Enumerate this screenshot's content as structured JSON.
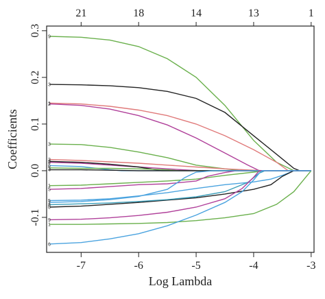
{
  "chart_data": {
    "type": "line",
    "xlabel": "Log Lambda",
    "ylabel": "Coefficients",
    "xlim": [
      -7.6,
      -2.95
    ],
    "ylim": [
      -0.175,
      0.31
    ],
    "x_ticks": [
      -7,
      -6,
      -5,
      -4,
      -3
    ],
    "x_tick_labels": [
      "-7",
      "-6",
      "-5",
      "-4",
      "-3"
    ],
    "y_ticks": [
      -0.1,
      0.0,
      0.1,
      0.2,
      0.3
    ],
    "y_tick_labels": [
      "-0.1",
      "0.0",
      "0.1",
      "0.2",
      "0.3"
    ],
    "top_axis": {
      "positions": [
        -7.0,
        -6.0,
        -5.0,
        -4.0,
        -3.0
      ],
      "labels": [
        "21",
        "18",
        "14",
        "13",
        "1"
      ]
    },
    "grid": false,
    "legend": "none",
    "series": [
      {
        "color": "#6ab04c",
        "label": "9",
        "points": [
          [
            -7.55,
            0.288
          ],
          [
            -7,
            0.286
          ],
          [
            -6.5,
            0.28
          ],
          [
            -6,
            0.266
          ],
          [
            -5.5,
            0.24
          ],
          [
            -5,
            0.2
          ],
          [
            -4.5,
            0.14
          ],
          [
            -4,
            0.065
          ],
          [
            -3.6,
            0.018
          ],
          [
            -3.3,
            0.0
          ],
          [
            -3.0,
            0.0
          ]
        ]
      },
      {
        "color": "#222222",
        "label": "3",
        "points": [
          [
            -7.55,
            0.185
          ],
          [
            -7,
            0.184
          ],
          [
            -6.5,
            0.182
          ],
          [
            -6,
            0.178
          ],
          [
            -5.5,
            0.17
          ],
          [
            -5,
            0.155
          ],
          [
            -4.5,
            0.125
          ],
          [
            -4,
            0.075
          ],
          [
            -3.6,
            0.035
          ],
          [
            -3.3,
            0.005
          ],
          [
            -3.2,
            0.0
          ],
          [
            -3.0,
            0.0
          ]
        ]
      },
      {
        "color": "#e07a7a",
        "label": "1",
        "points": [
          [
            -7.55,
            0.145
          ],
          [
            -7,
            0.143
          ],
          [
            -6.5,
            0.138
          ],
          [
            -6,
            0.13
          ],
          [
            -5.5,
            0.118
          ],
          [
            -5,
            0.1
          ],
          [
            -4.5,
            0.075
          ],
          [
            -4,
            0.045
          ],
          [
            -3.6,
            0.018
          ],
          [
            -3.4,
            0.0
          ],
          [
            -3.0,
            0.0
          ]
        ]
      },
      {
        "color": "#b0409a",
        "label": "2",
        "points": [
          [
            -7.55,
            0.143
          ],
          [
            -7,
            0.14
          ],
          [
            -6.5,
            0.132
          ],
          [
            -6,
            0.118
          ],
          [
            -5.5,
            0.098
          ],
          [
            -5,
            0.07
          ],
          [
            -4.5,
            0.038
          ],
          [
            -4.1,
            0.012
          ],
          [
            -3.9,
            0.0
          ],
          [
            -3.0,
            0.0
          ]
        ]
      },
      {
        "color": "#6ab04c",
        "label": "3",
        "points": [
          [
            -7.55,
            0.057
          ],
          [
            -7,
            0.056
          ],
          [
            -6.5,
            0.05
          ],
          [
            -6,
            0.04
          ],
          [
            -5.5,
            0.028
          ],
          [
            -5,
            0.012
          ],
          [
            -4.5,
            0.004
          ],
          [
            -4.2,
            0.0
          ],
          [
            -3.0,
            0.0
          ]
        ]
      },
      {
        "color": "#e07a7a",
        "label": "3",
        "points": [
          [
            -7.55,
            0.024
          ],
          [
            -7,
            0.022
          ],
          [
            -6.5,
            0.019
          ],
          [
            -6,
            0.016
          ],
          [
            -5.5,
            0.012
          ],
          [
            -5,
            0.008
          ],
          [
            -4.5,
            0.004
          ],
          [
            -4,
            0.001
          ],
          [
            -3.8,
            0.0
          ],
          [
            -3.0,
            0.0
          ]
        ]
      },
      {
        "color": "#b0409a",
        "label": "8",
        "points": [
          [
            -7.55,
            0.018
          ],
          [
            -7,
            0.016
          ],
          [
            -6.5,
            0.012
          ],
          [
            -6,
            0.008
          ],
          [
            -5.5,
            0.004
          ],
          [
            -5.1,
            0.001
          ],
          [
            -4.9,
            0.0
          ],
          [
            -3.0,
            0.0
          ]
        ]
      },
      {
        "color": "#222222",
        "label": "2",
        "points": [
          [
            -7.55,
            0.02
          ],
          [
            -7,
            0.018
          ],
          [
            -6.5,
            0.014
          ],
          [
            -6,
            0.008
          ],
          [
            -5.8,
            0.004
          ],
          [
            -5.6,
            0.0
          ],
          [
            -3.0,
            0.0
          ]
        ]
      },
      {
        "color": "#4aa3df",
        "label": "6",
        "points": [
          [
            -7.55,
            0.011
          ],
          [
            -7,
            0.009
          ],
          [
            -6.8,
            0.006
          ],
          [
            -6.5,
            0.002
          ],
          [
            -6.3,
            0.0
          ],
          [
            -3.0,
            0.0
          ]
        ]
      },
      {
        "color": "#6ab04c",
        "label": "5",
        "points": [
          [
            -7.55,
            0.006
          ],
          [
            -7,
            0.005
          ],
          [
            -6.5,
            0.005
          ],
          [
            -6,
            0.004
          ],
          [
            -5.5,
            0.002
          ],
          [
            -5.3,
            0.0
          ],
          [
            -3.0,
            0.0
          ]
        ]
      },
      {
        "color": "#222222",
        "label": "4",
        "points": [
          [
            -7.55,
            0.002
          ],
          [
            -7,
            0.002
          ],
          [
            -6.5,
            0.001
          ],
          [
            -6,
            0.0
          ],
          [
            -3.0,
            0.0
          ]
        ]
      },
      {
        "color": "#6ab04c",
        "label": "1",
        "points": [
          [
            -7.55,
            -0.032
          ],
          [
            -7,
            -0.031
          ],
          [
            -6.5,
            -0.028
          ],
          [
            -6,
            -0.025
          ],
          [
            -5.5,
            -0.022
          ],
          [
            -5,
            -0.018
          ],
          [
            -4.5,
            -0.01
          ],
          [
            -4,
            -0.003
          ],
          [
            -3.8,
            0.0
          ],
          [
            -3.0,
            0.0
          ]
        ]
      },
      {
        "color": "#b0409a",
        "label": "5",
        "points": [
          [
            -7.55,
            -0.04
          ],
          [
            -7,
            -0.038
          ],
          [
            -6.5,
            -0.034
          ],
          [
            -6,
            -0.03
          ],
          [
            -5.5,
            -0.028
          ],
          [
            -5,
            -0.022
          ],
          [
            -4.8,
            -0.012
          ],
          [
            -4.5,
            -0.004
          ],
          [
            -4.3,
            0.0
          ],
          [
            -3.0,
            0.0
          ]
        ]
      },
      {
        "color": "#4aa3df",
        "label": "1",
        "points": [
          [
            -7.55,
            -0.068
          ],
          [
            -7,
            -0.066
          ],
          [
            -6.5,
            -0.062
          ],
          [
            -6,
            -0.055
          ],
          [
            -5.5,
            -0.04
          ],
          [
            -5.2,
            -0.015
          ],
          [
            -5.0,
            -0.003
          ],
          [
            -4.7,
            0.0
          ],
          [
            -3.0,
            0.0
          ]
        ]
      },
      {
        "color": "#4aa3df",
        "label": "5",
        "points": [
          [
            -7.55,
            -0.064
          ],
          [
            -7,
            -0.063
          ],
          [
            -6.5,
            -0.06
          ],
          [
            -6,
            -0.054
          ],
          [
            -5.5,
            -0.047
          ],
          [
            -5,
            -0.038
          ],
          [
            -4.5,
            -0.03
          ],
          [
            -4,
            -0.024
          ],
          [
            -3.7,
            -0.018
          ],
          [
            -3.5,
            -0.01
          ],
          [
            -3.3,
            0.0
          ],
          [
            -3.0,
            0.0
          ]
        ]
      },
      {
        "color": "#222222",
        "label": "0",
        "points": [
          [
            -7.55,
            -0.078
          ],
          [
            -7,
            -0.076
          ],
          [
            -6.5,
            -0.072
          ],
          [
            -6,
            -0.068
          ],
          [
            -5.5,
            -0.063
          ],
          [
            -5,
            -0.058
          ],
          [
            -4.5,
            -0.05
          ],
          [
            -4,
            -0.04
          ],
          [
            -3.7,
            -0.03
          ],
          [
            -3.5,
            -0.012
          ],
          [
            -3.3,
            0.0
          ],
          [
            -3.0,
            0.0
          ]
        ]
      },
      {
        "color": "#3a9db8",
        "label": "8",
        "points": [
          [
            -7.55,
            -0.073
          ],
          [
            -7,
            -0.071
          ],
          [
            -6.5,
            -0.069
          ],
          [
            -6,
            -0.066
          ],
          [
            -5.5,
            -0.062
          ],
          [
            -5,
            -0.056
          ],
          [
            -4.5,
            -0.045
          ],
          [
            -4.1,
            -0.025
          ],
          [
            -3.9,
            -0.005
          ],
          [
            -3.8,
            0.0
          ],
          [
            -3.0,
            0.0
          ]
        ]
      },
      {
        "color": "#b0409a",
        "label": "9",
        "points": [
          [
            -7.55,
            -0.105
          ],
          [
            -7,
            -0.104
          ],
          [
            -6.5,
            -0.101
          ],
          [
            -6,
            -0.096
          ],
          [
            -5.5,
            -0.089
          ],
          [
            -5,
            -0.078
          ],
          [
            -4.5,
            -0.06
          ],
          [
            -4.2,
            -0.038
          ],
          [
            -4.0,
            -0.014
          ],
          [
            -3.9,
            0.0
          ],
          [
            -3.0,
            0.0
          ]
        ]
      },
      {
        "color": "#6ab04c",
        "label": "1",
        "points": [
          [
            -7.55,
            -0.115
          ],
          [
            -7,
            -0.115
          ],
          [
            -6.5,
            -0.114
          ],
          [
            -6,
            -0.113
          ],
          [
            -5.5,
            -0.111
          ],
          [
            -5,
            -0.107
          ],
          [
            -4.5,
            -0.101
          ],
          [
            -4,
            -0.092
          ],
          [
            -3.6,
            -0.072
          ],
          [
            -3.3,
            -0.045
          ],
          [
            -3.1,
            -0.015
          ],
          [
            -3.0,
            0.0
          ]
        ]
      },
      {
        "color": "#4aa3df",
        "label": "6",
        "points": [
          [
            -7.55,
            -0.157
          ],
          [
            -7,
            -0.154
          ],
          [
            -6.5,
            -0.146
          ],
          [
            -6,
            -0.135
          ],
          [
            -5.5,
            -0.118
          ],
          [
            -5,
            -0.095
          ],
          [
            -4.5,
            -0.068
          ],
          [
            -4.2,
            -0.045
          ],
          [
            -4.0,
            -0.02
          ],
          [
            -3.9,
            -0.005
          ],
          [
            -3.85,
            0.0
          ],
          [
            -3.0,
            0.0
          ]
        ]
      }
    ]
  }
}
